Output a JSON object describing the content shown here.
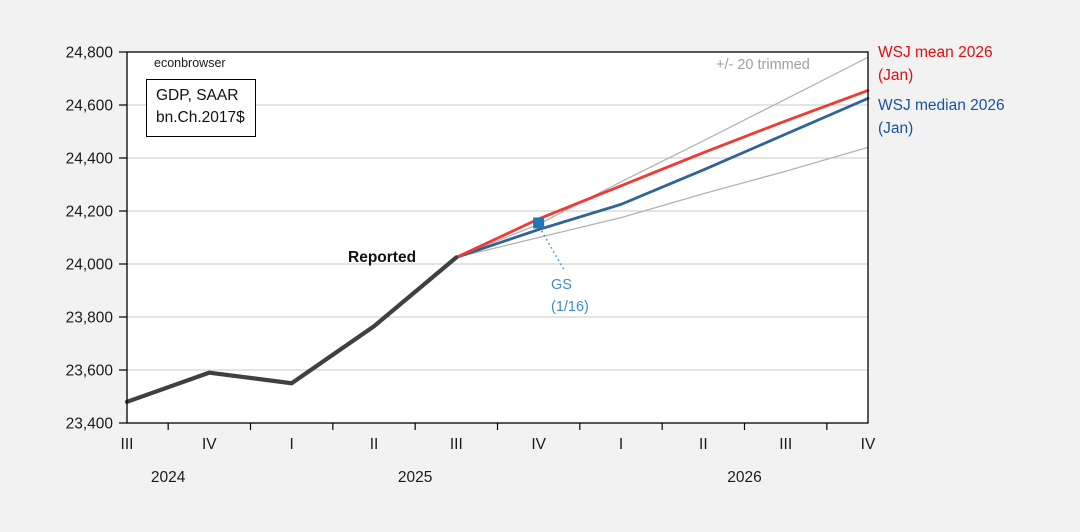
{
  "annotations": {
    "watermark": "econbrowser",
    "box_line1": "GDP, SAAR",
    "box_line2": "bn.Ch.2017$",
    "trimmed": "+/- 20 trimmed",
    "reported": "Reported",
    "gs_line1": "GS",
    "gs_line2": "(1/16)"
  },
  "legend": {
    "mean": {
      "line1": "WSJ mean 2026",
      "line2": "(Jan)",
      "color": "#e00d0d"
    },
    "median": {
      "line1": "WSJ median 2026",
      "line2": "(Jan)",
      "color": "#17549b"
    }
  },
  "chart_data": {
    "type": "line",
    "title": "",
    "ylabel_box": "GDP, SAAR bn.Ch.2017$",
    "ylim": [
      23400,
      24800
    ],
    "grid": true,
    "x_quarter_labels": [
      "III",
      "IV",
      "I",
      "II",
      "III",
      "IV",
      "I",
      "II",
      "III",
      "IV"
    ],
    "x_year_labels": [
      {
        "label": "2024",
        "center_index": 0.5
      },
      {
        "label": "2025",
        "center_index": 3.5
      },
      {
        "label": "2026",
        "center_index": 7.5
      }
    ],
    "yticks": [
      {
        "value": 23400,
        "label": "23,400"
      },
      {
        "value": 23600,
        "label": "23,600"
      },
      {
        "value": 23800,
        "label": "23,800"
      },
      {
        "value": 24000,
        "label": "24,000"
      },
      {
        "value": 24200,
        "label": "24,200"
      },
      {
        "value": 24400,
        "label": "24,400"
      },
      {
        "value": 24600,
        "label": "24,600"
      },
      {
        "value": 24800,
        "label": "24,800"
      }
    ],
    "series": [
      {
        "name": "trimmed-upper",
        "color": "#b3b3b3",
        "width": 1.3,
        "values": [
          null,
          null,
          null,
          null,
          24025,
          24150,
          24310,
          24465,
          24622,
          24780
        ]
      },
      {
        "name": "trimmed-lower",
        "color": "#b3b3b3",
        "width": 1.3,
        "values": [
          null,
          null,
          null,
          null,
          24025,
          24100,
          24175,
          24265,
          24350,
          24440
        ]
      },
      {
        "name": "WSJ median 2026 (Jan)",
        "color": "#2e6496",
        "width": 2.8,
        "values": [
          null,
          null,
          null,
          null,
          24025,
          24130,
          24225,
          24355,
          24490,
          24625
        ]
      },
      {
        "name": "WSJ mean 2026 (Jan)",
        "color": "#ef3b33",
        "width": 2.8,
        "values": [
          null,
          null,
          null,
          null,
          24025,
          24170,
          24295,
          24420,
          24540,
          24655
        ]
      },
      {
        "name": "Reported",
        "color": "#404040",
        "width": 4.2,
        "values": [
          23480,
          23590,
          23550,
          23765,
          24025,
          null,
          null,
          null,
          null,
          null
        ]
      }
    ],
    "point": {
      "name": "GS (1/16)",
      "x_index": 5,
      "value": 24155,
      "color": "#2077b8"
    }
  }
}
